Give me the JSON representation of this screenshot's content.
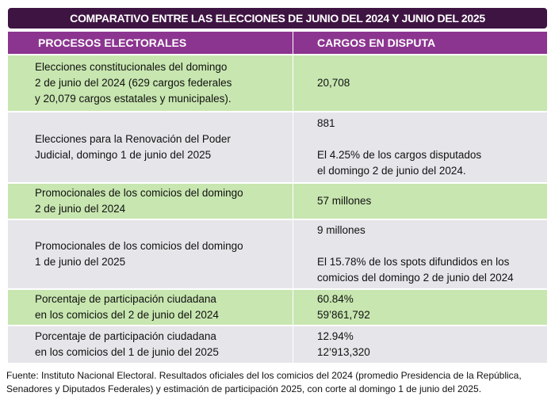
{
  "title": "COMPARATIVO ENTRE LAS ELECCIONES DE JUNIO DEL 2024 Y JUNIO DEL 2025",
  "headers": [
    "PROCESOS ELECTORALES",
    "CARGOS EN DISPUTA"
  ],
  "rows": [
    {
      "proc": [
        "Elecciones constitucionales del domingo",
        "2 de junio del 2024 (629 cargos federales",
        "y 20,079 cargos estatales y municipales)."
      ],
      "val": [
        "20,708"
      ]
    },
    {
      "proc": [
        "Elecciones para la Renovación del Poder",
        "Judicial, domingo 1 de junio del 2025"
      ],
      "val": [
        "881",
        "",
        "El 4.25% de los cargos disputados",
        "el domingo 2 de junio del 2024."
      ]
    },
    {
      "proc": [
        "Promocionales de los comicios del domingo",
        "2 de junio del 2024"
      ],
      "val": [
        "57 millones"
      ]
    },
    {
      "proc": [
        "Promocionales de los comicios del domingo",
        "1 de junio del 2025"
      ],
      "val": [
        "9 millones",
        "",
        "El 15.78%  de los spots difundidos en los",
        "comicios del domingo 2 de junio del 2024"
      ]
    },
    {
      "proc": [
        "Porcentaje de participación ciudadana",
        "en los comicios del 2 de junio del 2024"
      ],
      "val": [
        "60.84%",
        "59’861,792"
      ]
    },
    {
      "proc": [
        "Porcentaje de participación ciudadana",
        "en los comicios del 1 de junio del 2025"
      ],
      "val": [
        "12.94%",
        "12’913,320"
      ]
    }
  ],
  "footnote": [
    "Fuente: Instituto Nacional Electoral. Resultados oficiales del los comicios del 2024 (promedio Presidencia de la República,",
    "Senadores y Diputados Federales) y estimación de participación 2025, con corte al domingo 1 de junio del 2025."
  ]
}
